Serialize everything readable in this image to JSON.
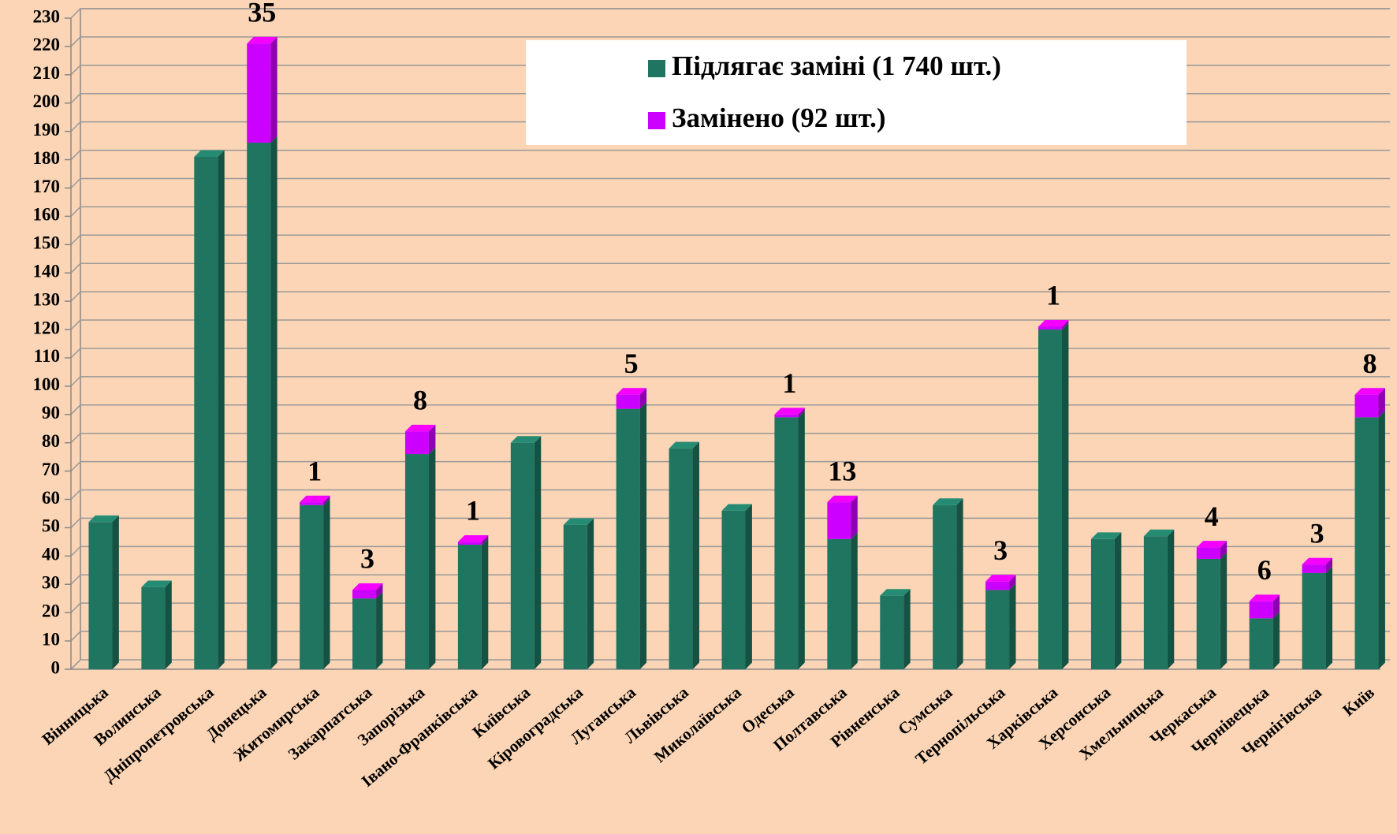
{
  "chart_data": {
    "type": "bar",
    "stacked": true,
    "categories": [
      "Вінницька",
      "Волинська",
      "Дніпропетровська",
      "Донецька",
      "Житомирська",
      "Закарпатська",
      "Запорізька",
      "Івано-Франківська",
      "Київська",
      "Кіровоградська",
      "Луганська",
      "Львівська",
      "Миколаївська",
      "Одеська",
      "Полтавська",
      "Рівненська",
      "Сумська",
      "Тернопільська",
      "Харківська",
      "Херсонська",
      "Хмельницька",
      "Черкаська",
      "Чернівецька",
      "Чернігівська",
      "Київ"
    ],
    "series": [
      {
        "name": "Підлягає заміні (1 740 шт.)",
        "color": "#1f7560",
        "values": [
          52,
          29,
          181,
          186,
          58,
          25,
          76,
          44,
          80,
          51,
          92,
          78,
          56,
          89,
          46,
          26,
          58,
          28,
          120,
          46,
          47,
          39,
          18,
          34,
          89
        ]
      },
      {
        "name": "Замінено (92 шт.)",
        "color": "#cc00ff",
        "values": [
          null,
          null,
          null,
          35,
          1,
          3,
          8,
          1,
          null,
          null,
          5,
          null,
          null,
          1,
          13,
          null,
          null,
          3,
          1,
          null,
          null,
          4,
          6,
          3,
          8
        ]
      }
    ],
    "ylim": [
      0,
      230
    ],
    "yticks": [
      0,
      10,
      20,
      30,
      40,
      50,
      60,
      70,
      80,
      90,
      100,
      110,
      120,
      130,
      140,
      150,
      160,
      170,
      180,
      190,
      200,
      210,
      220,
      230
    ],
    "grid": true
  }
}
